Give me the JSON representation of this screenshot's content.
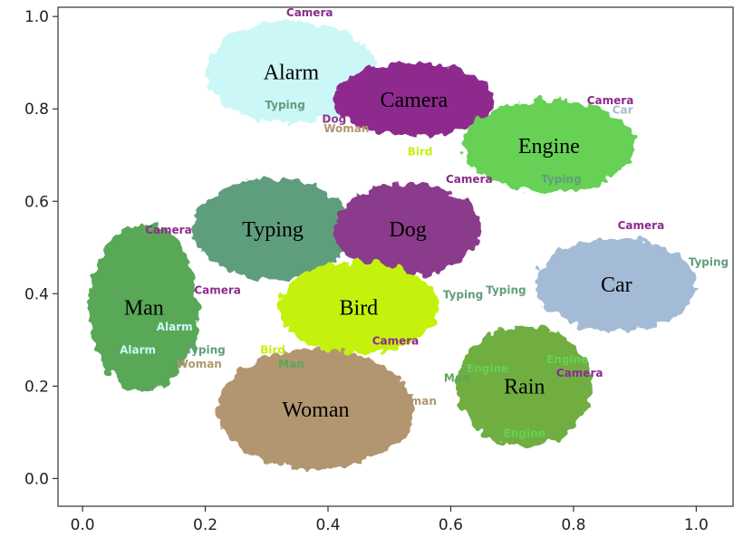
{
  "chart_data": {
    "type": "scatter",
    "title": "",
    "xlabel": "",
    "ylabel": "",
    "xlim": [
      -0.04,
      1.06
    ],
    "ylim": [
      -0.06,
      1.02
    ],
    "grid": false,
    "legend": "none",
    "x_ticks": [
      0.0,
      0.2,
      0.4,
      0.6,
      0.8,
      1.0
    ],
    "x_tick_labels": [
      "0.0",
      "0.2",
      "0.4",
      "0.6",
      "0.8",
      "1.0"
    ],
    "y_ticks": [
      0.0,
      0.2,
      0.4,
      0.6,
      0.8,
      1.0
    ],
    "y_tick_labels": [
      "0.0",
      "0.2",
      "0.4",
      "0.6",
      "0.8",
      "1.0"
    ],
    "clusters": [
      {
        "label": "Alarm",
        "color": "#ccf7f7",
        "x": 0.34,
        "y": 0.88,
        "rx": 0.14,
        "ry": 0.11
      },
      {
        "label": "Camera",
        "color": "#8e2a8e",
        "x": 0.54,
        "y": 0.82,
        "rx": 0.13,
        "ry": 0.08
      },
      {
        "label": "Engine",
        "color": "#66d155",
        "x": 0.76,
        "y": 0.72,
        "rx": 0.14,
        "ry": 0.1
      },
      {
        "label": "Typing",
        "color": "#5f9e7d",
        "x": 0.31,
        "y": 0.54,
        "rx": 0.13,
        "ry": 0.11
      },
      {
        "label": "Dog",
        "color": "#8b3a8b",
        "x": 0.53,
        "y": 0.54,
        "rx": 0.12,
        "ry": 0.1
      },
      {
        "label": "Car",
        "color": "#a3bbd6",
        "x": 0.87,
        "y": 0.42,
        "rx": 0.13,
        "ry": 0.1
      },
      {
        "label": "Man",
        "color": "#58a858",
        "x": 0.1,
        "y": 0.37,
        "rx": 0.09,
        "ry": 0.18
      },
      {
        "label": "Bird",
        "color": "#c4f20c",
        "x": 0.45,
        "y": 0.37,
        "rx": 0.13,
        "ry": 0.1
      },
      {
        "label": "Woman",
        "color": "#b19670",
        "x": 0.38,
        "y": 0.15,
        "rx": 0.16,
        "ry": 0.13
      },
      {
        "label": "Rain",
        "color": "#6fae42",
        "x": 0.72,
        "y": 0.2,
        "rx": 0.11,
        "ry": 0.13
      }
    ],
    "stray_labels": [
      {
        "text": "Camera",
        "x": 0.37,
        "y": 1.0,
        "color": "#8e2a8e"
      },
      {
        "text": "Typing",
        "x": 0.33,
        "y": 0.8,
        "color": "#5f9e7d"
      },
      {
        "text": "Dog",
        "x": 0.41,
        "y": 0.77,
        "color": "#8b3a8b"
      },
      {
        "text": "Woman",
        "x": 0.43,
        "y": 0.75,
        "color": "#b19670"
      },
      {
        "text": "Bird",
        "x": 0.55,
        "y": 0.7,
        "color": "#c4f20c"
      },
      {
        "text": "Camera",
        "x": 0.63,
        "y": 0.64,
        "color": "#8e2a8e"
      },
      {
        "text": "Camera",
        "x": 0.86,
        "y": 0.81,
        "color": "#8e2a8e"
      },
      {
        "text": "Car",
        "x": 0.88,
        "y": 0.79,
        "color": "#a3bbd6"
      },
      {
        "text": "Typing",
        "x": 0.78,
        "y": 0.64,
        "color": "#5f9e7d"
      },
      {
        "text": "Camera",
        "x": 0.91,
        "y": 0.54,
        "color": "#8e2a8e"
      },
      {
        "text": "Typing",
        "x": 1.02,
        "y": 0.46,
        "color": "#5f9e7d"
      },
      {
        "text": "Camera",
        "x": 0.22,
        "y": 0.4,
        "color": "#8e2a8e"
      },
      {
        "text": "Camera",
        "x": 0.14,
        "y": 0.53,
        "color": "#8e2a8e"
      },
      {
        "text": "Alarm",
        "x": 0.15,
        "y": 0.32,
        "color": "#ccf7f7"
      },
      {
        "text": "Alarm",
        "x": 0.09,
        "y": 0.27,
        "color": "#ccf7f7"
      },
      {
        "text": "Typing",
        "x": 0.2,
        "y": 0.27,
        "color": "#5f9e7d"
      },
      {
        "text": "Woman",
        "x": 0.19,
        "y": 0.24,
        "color": "#b19670"
      },
      {
        "text": "Man",
        "x": 0.34,
        "y": 0.24,
        "color": "#58a858"
      },
      {
        "text": "Bird",
        "x": 0.31,
        "y": 0.27,
        "color": "#c4f20c"
      },
      {
        "text": "Camera",
        "x": 0.51,
        "y": 0.29,
        "color": "#8e2a8e"
      },
      {
        "text": "Typing",
        "x": 0.69,
        "y": 0.4,
        "color": "#5f9e7d"
      },
      {
        "text": "Typing",
        "x": 0.62,
        "y": 0.39,
        "color": "#5f9e7d"
      },
      {
        "text": "Engine",
        "x": 0.79,
        "y": 0.25,
        "color": "#66d155"
      },
      {
        "text": "Camera",
        "x": 0.81,
        "y": 0.22,
        "color": "#8e2a8e"
      },
      {
        "text": "Man",
        "x": 0.61,
        "y": 0.21,
        "color": "#58a858"
      },
      {
        "text": "Engine",
        "x": 0.66,
        "y": 0.23,
        "color": "#66d155"
      },
      {
        "text": "Woman",
        "x": 0.54,
        "y": 0.16,
        "color": "#b19670"
      },
      {
        "text": "Engine",
        "x": 0.72,
        "y": 0.09,
        "color": "#66d155"
      }
    ]
  }
}
